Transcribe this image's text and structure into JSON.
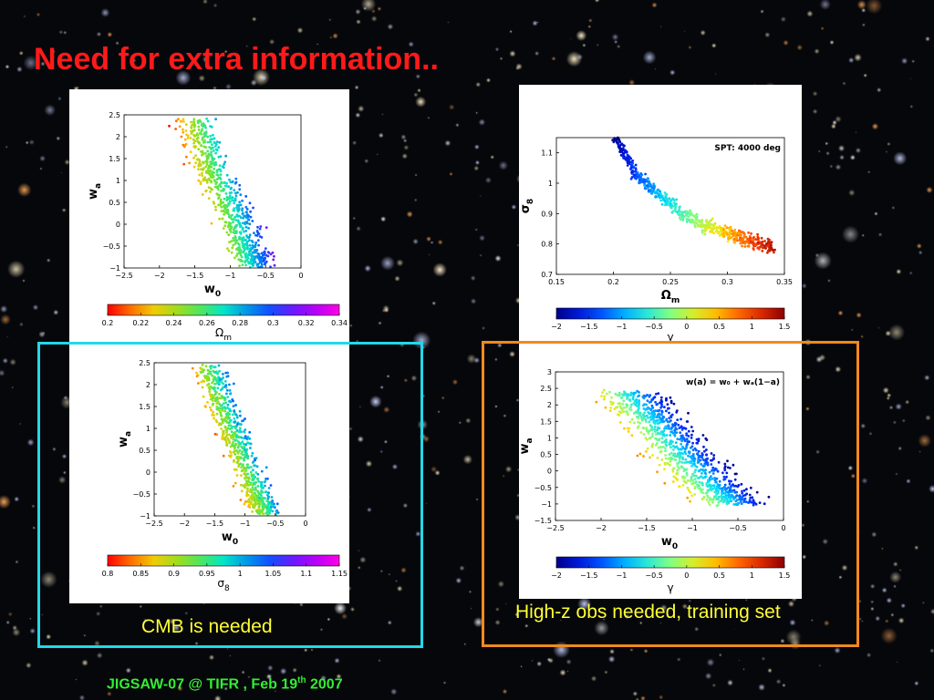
{
  "slide": {
    "title": "Need for extra information..",
    "footer": {
      "prefix": "JIGSAW-07 @ TIFR , Feb 19",
      "sup": "th",
      "suffix": " 2007"
    },
    "captions": {
      "left": "CMB is needed",
      "right": "High-z obs needed, training set"
    },
    "colors": {
      "title": "#ff1a1a",
      "caption": "#ffff33",
      "footer": "#33ee33",
      "frame_left": "#22d8e8",
      "frame_right": "#f08a1c",
      "background": "#06070b"
    }
  },
  "chart_data": [
    {
      "type": "scatter",
      "id": "top-left",
      "title": "",
      "xlabel": "w",
      "xlabel_sub": "0",
      "ylabel": "w",
      "ylabel_sub": "a",
      "xlim": [
        -2.5,
        0
      ],
      "ylim": [
        -1,
        2.5
      ],
      "xticks": [
        "-2.5",
        "-2",
        "-1.5",
        "-1",
        "-0.5",
        "0"
      ],
      "yticks": [
        "-1",
        "-0.5",
        "0",
        "0.5",
        "1",
        "1.5",
        "2",
        "2.5"
      ],
      "colormap": "red-yellow-green-cyan-blue-magenta",
      "colorbar": {
        "label": "Ω",
        "label_sub": "m",
        "range": [
          0.2,
          0.34
        ],
        "ticks": [
          "0.2",
          "0.22",
          "0.24",
          "0.26",
          "0.28",
          "0.3",
          "0.32",
          "0.34"
        ]
      },
      "color_trend": "high w0 and low wa points are magenta/blue; low w0 and high wa points are orange/yellow",
      "point_cloud": {
        "count": 700,
        "spine": [
          [
            -1.55,
            2.4
          ],
          [
            -1.3,
            1.4
          ],
          [
            -1.0,
            0.4
          ],
          [
            -0.75,
            -0.5
          ],
          [
            -0.6,
            -0.95
          ]
        ],
        "width_w0": 0.45
      }
    },
    {
      "type": "scatter",
      "id": "top-right",
      "title": "",
      "annotation": "SPT: 4000 deg",
      "xlabel": "Ω",
      "xlabel_sub": "m",
      "ylabel": "σ",
      "ylabel_sub": "8",
      "xlim": [
        0.15,
        0.35
      ],
      "ylim": [
        0.7,
        1.15
      ],
      "xticks": [
        "0.15",
        "0.2",
        "0.25",
        "0.3",
        "0.35"
      ],
      "yticks": [
        "0.7",
        "0.8",
        "0.9",
        "1",
        "1.1"
      ],
      "colormap": "jet",
      "colorbar": {
        "label": "γ",
        "label_sub": "",
        "range": [
          -2,
          1.5
        ],
        "ticks": [
          "-2",
          "-1.5",
          "-1",
          "-0.5",
          "0",
          "0.5",
          "1",
          "1.5"
        ]
      },
      "color_trend": "low Ωm / high σ8 points are blue; high Ωm / low σ8 points are red",
      "point_cloud": {
        "count": 650,
        "spine": [
          [
            0.2,
            1.16
          ],
          [
            0.22,
            1.03
          ],
          [
            0.25,
            0.93
          ],
          [
            0.28,
            0.86
          ],
          [
            0.31,
            0.82
          ],
          [
            0.34,
            0.79
          ]
        ],
        "width_y": 0.035
      }
    },
    {
      "type": "scatter",
      "id": "bottom-left",
      "title": "",
      "xlabel": "w",
      "xlabel_sub": "0",
      "ylabel": "w",
      "ylabel_sub": "a",
      "xlim": [
        -2.5,
        0
      ],
      "ylim": [
        -1,
        2.5
      ],
      "xticks": [
        "-2.5",
        "-2",
        "-1.5",
        "-1",
        "-0.5",
        "0"
      ],
      "yticks": [
        "-1",
        "-0.5",
        "0",
        "0.5",
        "1",
        "1.5",
        "2",
        "2.5"
      ],
      "colormap": "red-yellow-green-cyan-blue-magenta",
      "colorbar": {
        "label": "σ",
        "label_sub": "8",
        "range": [
          0.8,
          1.15
        ],
        "ticks": [
          "0.8",
          "0.85",
          "0.9",
          "0.95",
          "1",
          "1.05",
          "1.1",
          "1.15"
        ]
      },
      "color_trend": "high w0 side is blue/magenta; low w0 and low wa side is yellow/green",
      "point_cloud": {
        "count": 700,
        "spine": [
          [
            -1.6,
            2.4
          ],
          [
            -1.35,
            1.4
          ],
          [
            -1.05,
            0.4
          ],
          [
            -0.8,
            -0.5
          ],
          [
            -0.65,
            -0.95
          ]
        ],
        "width_w0": 0.42
      }
    },
    {
      "type": "scatter",
      "id": "bottom-right",
      "title": "",
      "annotation": "w(a) = w₀ + wₐ(1−a)",
      "xlabel": "w",
      "xlabel_sub": "0",
      "ylabel": "w",
      "ylabel_sub": "a",
      "xlim": [
        -2.5,
        0
      ],
      "ylim": [
        -1.5,
        3
      ],
      "xticks": [
        "-2.5",
        "-2",
        "-1.5",
        "-1",
        "-0.5",
        "0"
      ],
      "yticks": [
        "-1.5",
        "-1",
        "-0.5",
        "0",
        "0.5",
        "1",
        "1.5",
        "2",
        "2.5",
        "3"
      ],
      "colormap": "jet",
      "colorbar": {
        "label": "γ",
        "label_sub": "",
        "range": [
          -2,
          1.5
        ],
        "ticks": [
          "-2",
          "-1.5",
          "-1",
          "-0.5",
          "0",
          "0.5",
          "1",
          "1.5"
        ]
      },
      "color_trend": "upper-right edge of band is blue/cyan; lower-left edge is orange/red",
      "point_cloud": {
        "count": 900,
        "spine": [
          [
            -1.7,
            2.4
          ],
          [
            -1.4,
            1.5
          ],
          [
            -1.1,
            0.5
          ],
          [
            -0.8,
            -0.4
          ],
          [
            -0.55,
            -1.0
          ]
        ],
        "width_w0": 0.6
      }
    }
  ]
}
